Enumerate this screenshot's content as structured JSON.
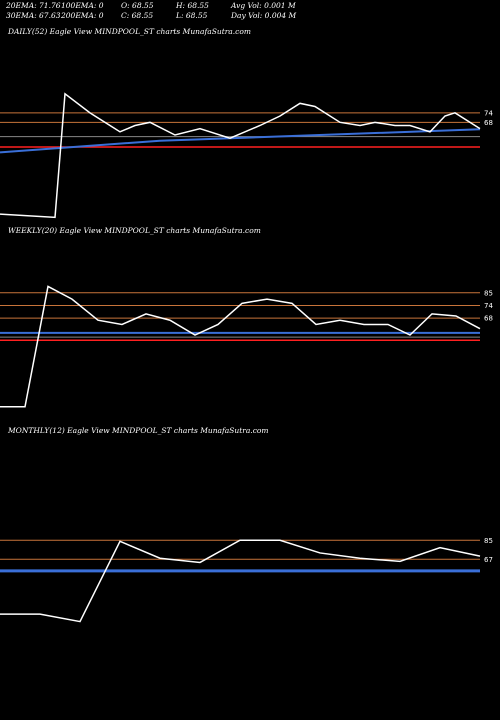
{
  "header": {
    "row1": [
      "20EMA: 71.76",
      "100EMA: 0",
      "O: 68.55",
      "H: 68.55",
      "Avg Vol: 0.001 M"
    ],
    "row2": [
      "30EMA: 67.63",
      "200EMA: 0",
      "C: 68.55",
      "L: 68.55",
      "Day Vol: 0.004  M"
    ]
  },
  "panels": [
    {
      "title": "DAILY(52) Eagle   View  MINDPOOL_ST charts MunafaSutra.com"
    },
    {
      "title": "WEEKLY(20) Eagle   View  MINDPOOL_ST charts MunafaSutra.com"
    },
    {
      "title": "MONTHLY(12) Eagle   View  MINDPOOL_ST charts MunafaSutra.com"
    }
  ],
  "colors": {
    "background": "#000000",
    "price": "#ffffff",
    "ema_blue": "#3a6fd8",
    "level_orange": "#c8743a",
    "level_red": "#ff2020"
  },
  "chart_data": [
    {
      "type": "line",
      "title": "DAILY(52) Eagle   View  MINDPOOL_ST charts MunafaSutra.com",
      "ylim": [
        40,
        100
      ],
      "y_tick_labels": [
        "74",
        "68"
      ],
      "hlines_orange": [
        77,
        74
      ],
      "hlines_red": [
        66.2
      ],
      "hline_gray": 69.5,
      "ema_blue": [
        [
          0,
          64.5
        ],
        [
          160,
          68.2
        ],
        [
          480,
          71.8
        ]
      ],
      "price": [
        [
          0,
          45
        ],
        [
          55,
          44
        ],
        [
          65,
          83
        ],
        [
          90,
          77
        ],
        [
          120,
          71
        ],
        [
          135,
          73
        ],
        [
          150,
          74
        ],
        [
          175,
          70
        ],
        [
          200,
          72
        ],
        [
          230,
          69
        ],
        [
          260,
          73
        ],
        [
          280,
          76
        ],
        [
          300,
          80
        ],
        [
          315,
          79
        ],
        [
          340,
          74
        ],
        [
          360,
          73
        ],
        [
          375,
          74
        ],
        [
          395,
          73
        ],
        [
          410,
          73
        ],
        [
          430,
          71
        ],
        [
          445,
          76
        ],
        [
          455,
          77
        ],
        [
          480,
          72
        ]
      ]
    },
    {
      "type": "line",
      "title": "WEEKLY(20) Eagle   View  MINDPOOL_ST charts MunafaSutra.com",
      "ylim": [
        20,
        110
      ],
      "y_tick_labels": [
        "85",
        "74",
        "68"
      ],
      "hlines_orange": [
        85,
        79,
        73
      ],
      "hlines_red": [
        62.5
      ],
      "hline_gray": 64,
      "ema_blue": [
        [
          0,
          66
        ],
        [
          480,
          66
        ]
      ],
      "price": [
        [
          0,
          31
        ],
        [
          25,
          31
        ],
        [
          48,
          88
        ],
        [
          72,
          82
        ],
        [
          98,
          72
        ],
        [
          122,
          70
        ],
        [
          146,
          75
        ],
        [
          170,
          72
        ],
        [
          195,
          65
        ],
        [
          218,
          70
        ],
        [
          242,
          80
        ],
        [
          267,
          82
        ],
        [
          292,
          80
        ],
        [
          316,
          70
        ],
        [
          340,
          72
        ],
        [
          364,
          70
        ],
        [
          388,
          70
        ],
        [
          410,
          65
        ],
        [
          432,
          75
        ],
        [
          456,
          74
        ],
        [
          480,
          68
        ]
      ]
    },
    {
      "type": "line",
      "title": "MONTHLY(12) Eagle   View  MINDPOOL_ST charts MunafaSutra.com",
      "ylim": [
        0,
        180
      ],
      "y_tick_labels": [
        "85",
        "67"
      ],
      "hlines_orange": [
        85,
        67
      ],
      "hlines_red": [],
      "hline_gray": null,
      "ema_blue_band": 56,
      "price": [
        [
          0,
          15
        ],
        [
          40,
          15
        ],
        [
          80,
          8
        ],
        [
          120,
          84
        ],
        [
          160,
          68
        ],
        [
          200,
          64
        ],
        [
          240,
          85
        ],
        [
          280,
          85
        ],
        [
          320,
          73
        ],
        [
          360,
          68
        ],
        [
          400,
          65
        ],
        [
          440,
          78
        ],
        [
          480,
          70
        ]
      ]
    }
  ]
}
